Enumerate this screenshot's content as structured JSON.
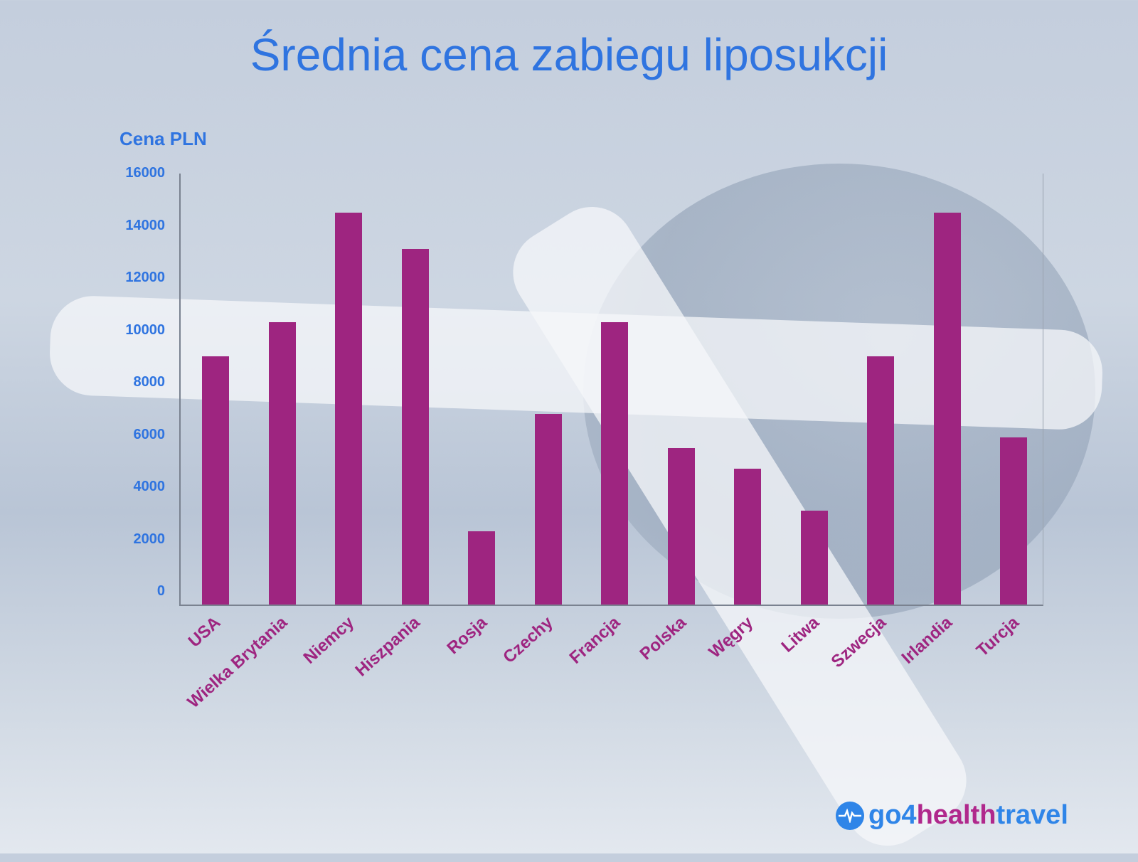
{
  "title": "Średnia cena zabiegu liposukcji",
  "y_axis_label": "Cena PLN",
  "y_ticks": [
    "16000",
    "14000",
    "12000",
    "10000",
    "8000",
    "6000",
    "4000",
    "2000",
    "0"
  ],
  "logo": {
    "part1": "go4",
    "part2": "health",
    "part3": "travel"
  },
  "colors": {
    "bar": "#9e2580",
    "title": "#2f74e0",
    "axis_text": "#2f74e0",
    "category_text": "#9e2580"
  },
  "chart_data": {
    "type": "bar",
    "title": "Średnia cena zabiegu liposukcji",
    "xlabel": "",
    "ylabel": "Cena PLN",
    "ylim": [
      0,
      16000
    ],
    "yticks": [
      0,
      2000,
      4000,
      6000,
      8000,
      10000,
      12000,
      14000,
      16000
    ],
    "grid": false,
    "legend": null,
    "categories": [
      "USA",
      "Wielka Brytania",
      "Niemcy",
      "Hiszpania",
      "Rosja",
      "Czechy",
      "Francja",
      "Polska",
      "Węgry",
      "Litwa",
      "Szwecja",
      "Irlandia",
      "Turcja"
    ],
    "values": [
      9500,
      10800,
      15000,
      13600,
      2800,
      7300,
      10800,
      6000,
      5200,
      3600,
      9500,
      15000,
      6400
    ]
  }
}
